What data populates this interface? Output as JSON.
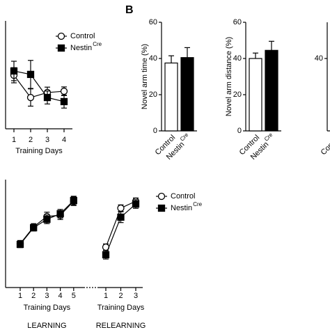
{
  "chart_data": [
    {
      "type": "line",
      "x": [
        1,
        2,
        3,
        4
      ],
      "xlim": [
        0.5,
        4.5
      ],
      "ylim": [
        0,
        5
      ],
      "xlabel": "Training Days",
      "legend": "top right",
      "series": [
        {
          "name": "Control",
          "marker": "circle",
          "color": "#ffffff",
          "values": [
            2.48,
            1.45,
            1.68,
            1.74
          ],
          "errors": [
            0.35,
            0.4,
            0.25,
            0.2
          ]
        },
        {
          "name": "Nestin",
          "name_superscript": "Cre",
          "marker": "square",
          "color": "#000000",
          "values": [
            2.68,
            2.52,
            1.45,
            1.26
          ],
          "errors": [
            0.45,
            0.65,
            0.3,
            0.3
          ]
        }
      ]
    },
    {
      "type": "bar",
      "panel_label": "B",
      "ylabel": "Novel arm time (%)",
      "categories": [
        {
          "text": "Control"
        },
        {
          "text": "Nestin",
          "sup": "Cre"
        }
      ],
      "colors": [
        "#ffffff",
        "#000000"
      ],
      "values": [
        37.5,
        40.5
      ],
      "errors": [
        4,
        5.5
      ],
      "ylim": [
        0,
        60
      ],
      "yticks": [
        0,
        20,
        40,
        60
      ]
    },
    {
      "type": "bar",
      "ylabel": "Novel arm distance (%)",
      "categories": [
        {
          "text": "Control"
        },
        {
          "text": "Nestin",
          "sup": "Cre"
        }
      ],
      "colors": [
        "#ffffff",
        "#000000"
      ],
      "values": [
        40,
        44.5
      ],
      "errors": [
        3,
        5
      ],
      "ylim": [
        0,
        60
      ],
      "yticks": [
        0,
        20,
        40,
        60
      ]
    },
    {
      "type": "bar",
      "categories": [
        {
          "text": "Control"
        }
      ],
      "ylim": [
        0,
        60
      ],
      "yticks": [
        40
      ]
    },
    {
      "type": "line",
      "ylim": [
        0,
        5
      ],
      "legend": "top right",
      "segments": [
        {
          "label": "LEARNING",
          "xlabel": "Training Days",
          "x": [
            1,
            2,
            3,
            4,
            5
          ]
        },
        {
          "label": "RELEARNING",
          "xlabel": "Training Days",
          "x": [
            1,
            2,
            3
          ]
        }
      ],
      "series": [
        {
          "name": "Control",
          "marker": "circle",
          "color": "#ffffff",
          "values": [
            [
              2.03,
              2.81,
              3.29,
              3.35,
              4.0
            ],
            [
              1.87,
              3.68,
              4.0
            ]
          ],
          "errors": [
            [
              0.15,
              0.15,
              0.2,
              0.2,
              0.2
            ],
            [
              0.15,
              0.15,
              0.15
            ]
          ]
        },
        {
          "name": "Nestin",
          "name_superscript": "Cre",
          "marker": "square",
          "color": "#000000",
          "values": [
            [
              2.0,
              2.77,
              3.16,
              3.42,
              4.03
            ],
            [
              1.52,
              3.26,
              3.87
            ]
          ],
          "errors": [
            [
              0.15,
              0.15,
              0.2,
              0.2,
              0.2
            ],
            [
              0.2,
              0.25,
              0.2
            ]
          ]
        }
      ]
    }
  ]
}
